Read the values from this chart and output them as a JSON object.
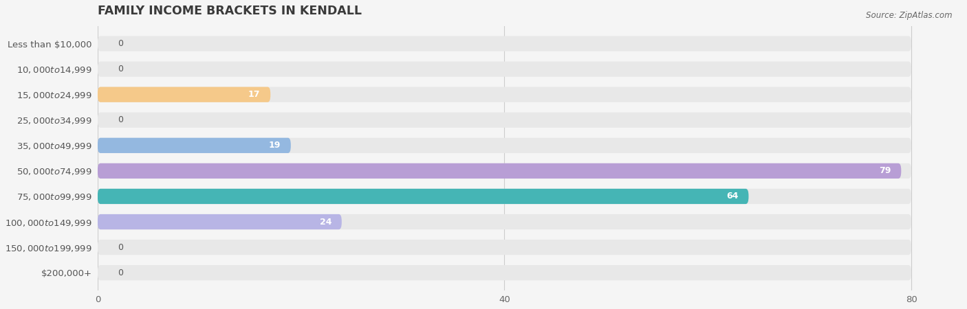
{
  "title": "FAMILY INCOME BRACKETS IN KENDALL",
  "source": "Source: ZipAtlas.com",
  "categories": [
    "Less than $10,000",
    "$10,000 to $14,999",
    "$15,000 to $24,999",
    "$25,000 to $34,999",
    "$35,000 to $49,999",
    "$50,000 to $74,999",
    "$75,000 to $99,999",
    "$100,000 to $149,999",
    "$150,000 to $199,999",
    "$200,000+"
  ],
  "values": [
    0,
    0,
    17,
    0,
    19,
    79,
    64,
    24,
    0,
    0
  ],
  "bar_colors": [
    "#aaaad5",
    "#f49ab5",
    "#f5c98a",
    "#f49ab5",
    "#94b8e0",
    "#b89ed5",
    "#45b5b5",
    "#b8b5e5",
    "#f49ab5",
    "#f5d09a"
  ],
  "data_max": 80,
  "xlim_max": 85,
  "xticks": [
    0,
    40,
    80
  ],
  "background_color": "#f5f5f5",
  "bar_bg_color": "#e8e8e8",
  "title_color": "#3a3a3a",
  "label_color": "#555555",
  "tick_color": "#666666",
  "source_color": "#666666",
  "title_fontsize": 12.5,
  "label_fontsize": 9.5,
  "value_fontsize": 9,
  "bar_height": 0.6,
  "bar_rounding": 0.28
}
